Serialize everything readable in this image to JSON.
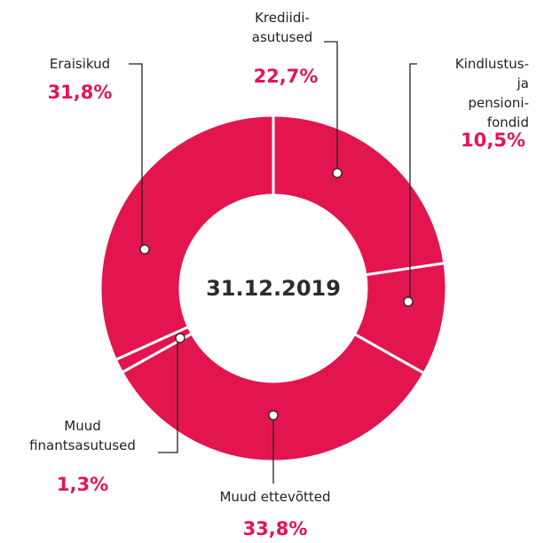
{
  "chart_data": {
    "type": "donut",
    "title": "31.12.2019",
    "categories": [
      "Krediidi-\nasutused",
      "Kindlustus-\nja pensioni-\nfondid",
      "Muud ettevõtted",
      "Muud\nfinantsasutused",
      "Eraisikud"
    ],
    "values": [
      22.7,
      10.5,
      33.8,
      1.3,
      31.8
    ],
    "value_labels": [
      "22,7%",
      "10,5%",
      "33,8%",
      "1,3%",
      "31,8%"
    ],
    "color": "#e3154e"
  }
}
